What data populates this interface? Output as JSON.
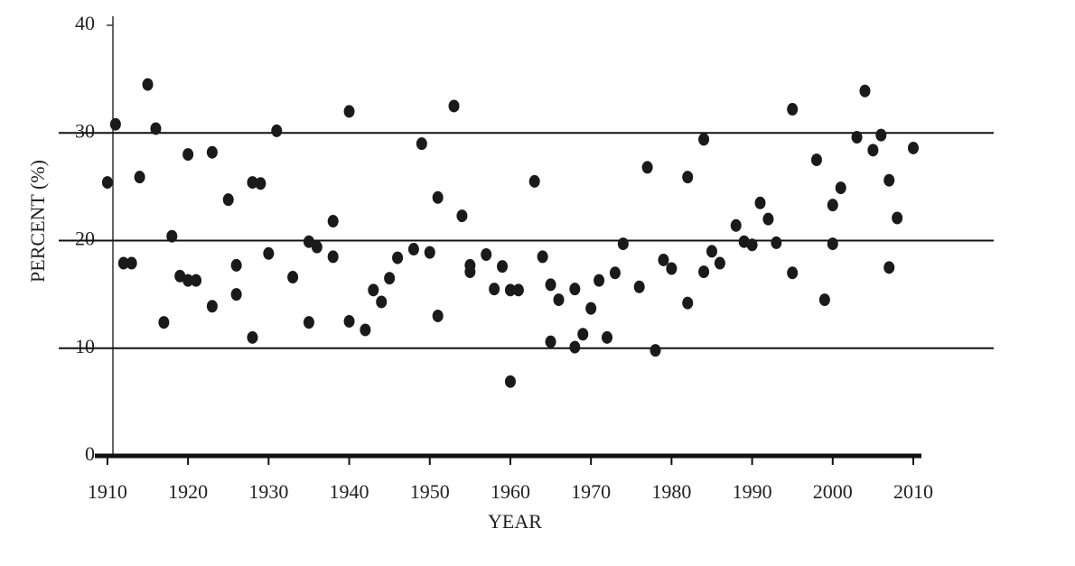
{
  "chart_data": {
    "type": "scatter",
    "x_label": "YEAR",
    "y_label": "PERCENT (%)",
    "xlim": [
      1909,
      2010
    ],
    "ylim": [
      0,
      40
    ],
    "xticks": [
      1910,
      1920,
      1930,
      1940,
      1950,
      1960,
      1970,
      1980,
      1990,
      2000,
      2010
    ],
    "yticks": [
      0,
      10,
      20,
      30,
      40
    ],
    "grid": true,
    "color": "#1a1a1a",
    "x": [
      1911,
      1910,
      1912,
      1913,
      1915,
      1914,
      1916,
      1917,
      1918,
      1919,
      1920,
      1920,
      1921,
      1923,
      1923,
      1925,
      1926,
      1926,
      1928,
      1928,
      1929,
      1930,
      1931,
      1933,
      1935,
      1935,
      1936,
      1938,
      1938,
      1940,
      1940,
      1942,
      1943,
      1944,
      1945,
      1946,
      1948,
      1949,
      1950,
      1951,
      1951,
      1953,
      1954,
      1955,
      1955,
      1957,
      1958,
      1959,
      1960,
      1960,
      1961,
      1963,
      1964,
      1965,
      1965,
      1966,
      1968,
      1968,
      1969,
      1970,
      1971,
      1972,
      1973,
      1974,
      1976,
      1977,
      1978,
      1979,
      1980,
      1982,
      1982,
      1984,
      1984,
      1985,
      1986,
      1988,
      1989,
      1990,
      1991,
      1992,
      1993,
      1995,
      1995,
      1998,
      1999,
      2000,
      2000,
      2001,
      2003,
      2004,
      2005,
      2006,
      2007,
      2007,
      2008,
      2010
    ],
    "values": [
      30.8,
      25.4,
      17.9,
      17.9,
      34.5,
      25.9,
      30.4,
      12.4,
      20.4,
      16.7,
      28,
      16.3,
      16.3,
      28.2,
      13.9,
      23.8,
      17.7,
      15,
      25.4,
      11,
      25.3,
      18.8,
      30.2,
      16.6,
      19.9,
      12.4,
      19.4,
      18.5,
      21.8,
      32,
      12.5,
      11.7,
      15.4,
      14.3,
      16.5,
      18.4,
      19.2,
      29,
      18.9,
      13,
      24,
      32.5,
      22.3,
      17.7,
      17.1,
      18.7,
      15.5,
      17.6,
      15.4,
      6.9,
      15.4,
      25.5,
      18.5,
      15.9,
      10.6,
      14.5,
      15.5,
      10.1,
      11.3,
      13.7,
      16.3,
      11,
      17,
      19.7,
      15.7,
      26.8,
      9.8,
      18.2,
      17.4,
      25.9,
      14.2,
      29.4,
      17.1,
      19,
      17.9,
      21.4,
      19.9,
      19.6,
      23.5,
      22,
      19.8,
      32.2,
      17,
      27.5,
      14.5,
      19.7,
      23.3,
      24.9,
      29.6,
      33.9,
      28.4,
      29.8,
      25.6,
      17.5,
      22.1,
      28.6
    ]
  }
}
